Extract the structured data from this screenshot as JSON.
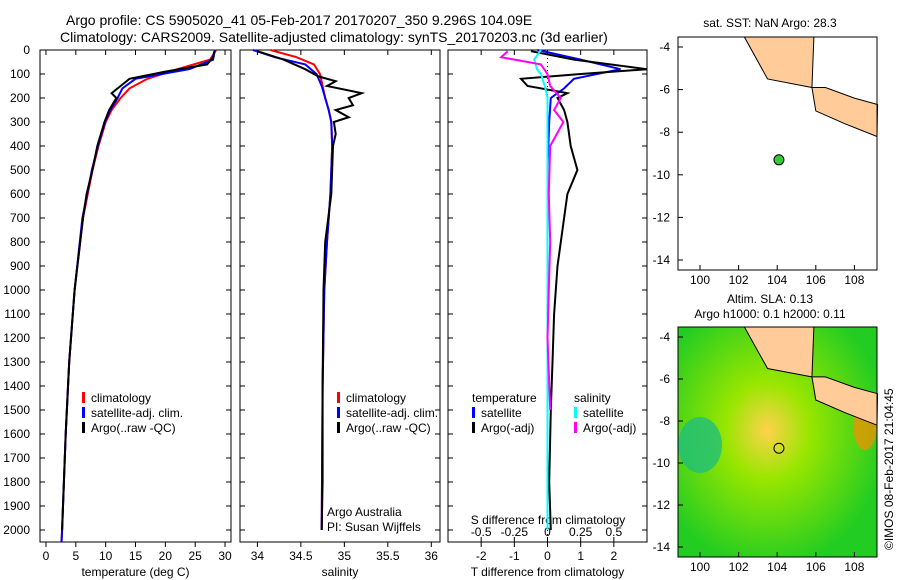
{
  "title_line1": "Argo profile: CS 5905020_41 05-Feb-2017 20170207_350 9.296S 104.09E",
  "title_line2": "Climatology: CARS2009. Satellite-adjusted climatology: synTS_20170203.nc (3d earlier)",
  "copyright": "©IMOS 08-Feb-2017 21:04:45",
  "colors": {
    "clim": "#ff0000",
    "sat": "#0000ff",
    "argo": "#000000",
    "salsat": "#00ffff",
    "salargo": "#ff00ff",
    "land": "#ffcc99"
  },
  "chart_data": [
    {
      "type": "line",
      "xlabel": "temperature (deg C)",
      "xlim": [
        -1,
        31
      ],
      "ylim": [
        2050,
        0
      ],
      "xticks": [
        "0",
        "5",
        "10",
        "15",
        "20",
        "25",
        "30"
      ],
      "xtickvals": [
        0,
        5,
        10,
        15,
        20,
        25,
        30
      ],
      "yticks": [
        "0",
        "100",
        "200",
        "300",
        "400",
        "500",
        "600",
        "700",
        "800",
        "900",
        "1000",
        "1100",
        "1200",
        "1300",
        "1400",
        "1500",
        "1600",
        "1700",
        "1800",
        "1900",
        "2000"
      ],
      "legend": [
        "climatology",
        "satellite-adj. clim.",
        "Argo(..raw -QC)"
      ],
      "series": [
        {
          "name": "climatology",
          "color": "clim",
          "depth": [
            0,
            40,
            80,
            120,
            160,
            200,
            250,
            300,
            400,
            500,
            700,
            1000,
            1300,
            1600,
            2000,
            2050
          ],
          "values": [
            28.5,
            27.5,
            22,
            17,
            14,
            12.5,
            11,
            10,
            8.8,
            7.8,
            6.2,
            4.8,
            3.9,
            3.3,
            2.7,
            2.6
          ]
        },
        {
          "name": "satellite-adj. clim.",
          "color": "sat",
          "depth": [
            0,
            40,
            80,
            120,
            160,
            200,
            250,
            300,
            400,
            500,
            700,
            1000,
            1300,
            1600,
            2000,
            2050
          ],
          "values": [
            28.3,
            28,
            24,
            15,
            12.8,
            12,
            10.8,
            9.9,
            8.7,
            7.7,
            6.1,
            4.8,
            3.9,
            3.3,
            2.7,
            2.6
          ]
        },
        {
          "name": "Argo",
          "color": "argo",
          "depth": [
            5,
            30,
            60,
            90,
            120,
            150,
            180,
            200,
            250,
            300,
            400,
            500,
            600,
            700,
            1000,
            1300,
            1600,
            2000
          ],
          "values": [
            28.2,
            28,
            27,
            20,
            14,
            12.5,
            11,
            11.8,
            10.6,
            9.8,
            8.6,
            7.8,
            6.8,
            6.2,
            4.8,
            3.9,
            3.3,
            2.7
          ]
        }
      ]
    },
    {
      "type": "line",
      "xlabel": "salinity",
      "xlim": [
        33.8,
        36.1
      ],
      "ylim": [
        2050,
        0
      ],
      "xticks": [
        "34",
        "34.5",
        "35",
        "35.5",
        "36"
      ],
      "xtickvals": [
        34,
        34.5,
        35,
        35.5,
        36
      ],
      "legend": [
        "climatology",
        "satellite-adj. clim.",
        "Argo(..raw -QC)"
      ],
      "annotation": [
        "Argo Australia",
        "PI: Susan Wijffels"
      ],
      "series": [
        {
          "name": "climatology",
          "color": "clim",
          "depth": [
            0,
            30,
            60,
            100,
            150,
            200,
            250,
            300,
            400,
            600,
            800,
            1000,
            1400,
            2000
          ],
          "values": [
            34.15,
            34.45,
            34.65,
            34.72,
            34.75,
            34.78,
            34.82,
            34.85,
            34.86,
            34.84,
            34.8,
            34.77,
            34.75,
            34.74
          ]
        },
        {
          "name": "satellite-adj. clim.",
          "color": "sat",
          "depth": [
            0,
            30,
            60,
            100,
            150,
            200,
            250,
            300,
            400,
            600,
            800,
            1000,
            1400,
            2000
          ],
          "values": [
            33.95,
            34.2,
            34.55,
            34.68,
            34.74,
            34.78,
            34.82,
            34.85,
            34.86,
            34.84,
            34.8,
            34.77,
            34.75,
            34.74
          ]
        },
        {
          "name": "Argo",
          "color": "argo",
          "depth": [
            5,
            40,
            80,
            110,
            130,
            150,
            180,
            200,
            230,
            250,
            280,
            300,
            350,
            400,
            600,
            800,
            1000,
            1400,
            1800,
            2000
          ],
          "values": [
            34.0,
            34.3,
            34.55,
            34.7,
            34.9,
            34.8,
            35.2,
            35.05,
            35.1,
            34.9,
            35.05,
            34.88,
            34.9,
            34.87,
            34.85,
            34.78,
            34.76,
            34.75,
            34.75,
            34.74
          ]
        }
      ]
    },
    {
      "type": "line",
      "xlabel": "T difference from climatology",
      "x2label": "S difference from climatology",
      "xlim": [
        -3,
        3
      ],
      "ylim": [
        2050,
        0
      ],
      "xticks": [
        "-2",
        "-1",
        "0",
        "1",
        "2"
      ],
      "xtickvals": [
        -2,
        -1,
        0,
        1,
        2
      ],
      "x2ticks": [
        "-0.5",
        "-0.25",
        "0",
        "0.25",
        "0.5"
      ],
      "x2tickvals": [
        -0.5,
        -0.25,
        0,
        0.25,
        0.5
      ],
      "legend_t": [
        "temperature",
        "satellite",
        "Argo(-adj)"
      ],
      "legend_s": [
        "salinity",
        "satellite",
        "Argo(-adj)"
      ],
      "series": [
        {
          "name": "T satellite",
          "color": "sat",
          "depth": [
            0,
            40,
            80,
            120,
            160,
            200,
            300,
            500,
            1000,
            2000
          ],
          "values": [
            -0.3,
            1,
            2.2,
            0.8,
            0.5,
            0.1,
            0.05,
            0,
            0,
            0
          ]
        },
        {
          "name": "T Argo",
          "color": "argo",
          "depth": [
            5,
            40,
            80,
            100,
            120,
            150,
            180,
            200,
            250,
            300,
            400,
            500,
            600,
            700,
            900,
            1100,
            1300,
            1500,
            1800,
            2000
          ],
          "values": [
            -0.5,
            0.8,
            3,
            1,
            -0.8,
            -0.6,
            0.6,
            0.3,
            0.5,
            0.6,
            0.7,
            0.9,
            0.6,
            0.5,
            0.3,
            0.2,
            0.15,
            0.1,
            0.05,
            0.1
          ]
        },
        {
          "name": "S satellite",
          "color": "salsat",
          "depth": [
            0,
            40,
            80,
            100,
            150,
            200,
            300,
            500,
            1000,
            2000
          ],
          "values": [
            -0.05,
            -0.1,
            -0.08,
            -0.05,
            -0.02,
            0,
            0,
            0,
            0,
            0
          ]
        },
        {
          "name": "S Argo",
          "color": "salargo",
          "depth": [
            5,
            30,
            60,
            100,
            150,
            200,
            250,
            300,
            400,
            600,
            800,
            1000,
            1200,
            1500
          ],
          "values": [
            -0.3,
            -0.35,
            -0.05,
            0,
            0.02,
            0.1,
            0.05,
            0.12,
            0.02,
            0.01,
            0.02,
            0.01,
            0,
            0.02
          ]
        }
      ]
    }
  ],
  "map1": {
    "title": "sat. SST: NaN Argo: 28.3",
    "xticks": [
      "100",
      "102",
      "104",
      "106",
      "108"
    ],
    "yticks": [
      "-4",
      "-6",
      "-8",
      "-10",
      "-12",
      "-14"
    ],
    "float_lon": 104.09,
    "float_lat": -9.296
  },
  "map2": {
    "title1": "Altim. SLA: 0.13",
    "title2": "Argo h1000: 0.1 h2000: 0.11",
    "xticks": [
      "100",
      "102",
      "104",
      "106",
      "108"
    ],
    "yticks": [
      "-4",
      "-6",
      "-8",
      "-10",
      "-12",
      "-14"
    ]
  }
}
